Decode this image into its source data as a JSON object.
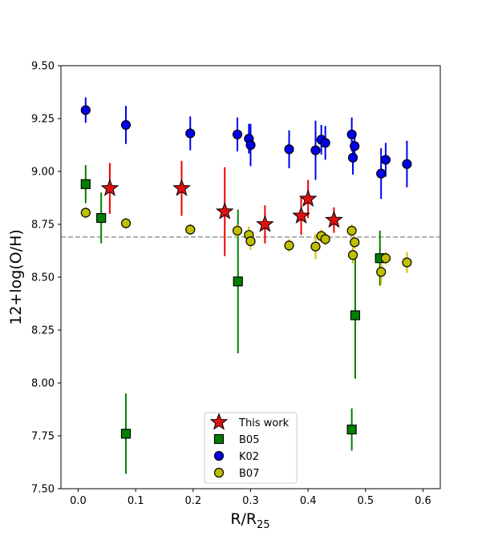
{
  "chart_data": {
    "type": "scatter",
    "title": "",
    "xlabel": "R/R",
    "xlabel_sub": "25",
    "ylabel": "12+log(O/H)",
    "xlim": [
      -0.03,
      0.63
    ],
    "ylim": [
      7.5,
      9.5
    ],
    "xticks": [
      0.0,
      0.1,
      0.2,
      0.3,
      0.4,
      0.5,
      0.6
    ],
    "xtick_labels": [
      "0.0",
      "0.1",
      "0.2",
      "0.3",
      "0.4",
      "0.5",
      "0.6"
    ],
    "yticks": [
      7.5,
      7.75,
      8.0,
      8.25,
      8.5,
      8.75,
      9.0,
      9.25,
      9.5
    ],
    "ytick_labels": [
      "7.50",
      "7.75",
      "8.00",
      "8.25",
      "8.50",
      "8.75",
      "9.00",
      "9.25",
      "9.50"
    ],
    "reference_line": {
      "y": 8.69,
      "style": "dashed",
      "color": "#808080"
    },
    "legend_position": "lower-center",
    "series": [
      {
        "name": "This work",
        "marker": "star",
        "color": "#dd1111",
        "errcolor": "#ee0000",
        "points": [
          {
            "x": 0.055,
            "y": 8.92,
            "err": 0.12
          },
          {
            "x": 0.18,
            "y": 8.92,
            "err": 0.13
          },
          {
            "x": 0.255,
            "y": 8.81,
            "err": 0.21
          },
          {
            "x": 0.325,
            "y": 8.75,
            "err": 0.09
          },
          {
            "x": 0.388,
            "y": 8.79,
            "err": 0.09
          },
          {
            "x": 0.4,
            "y": 8.87,
            "err": 0.09
          },
          {
            "x": 0.445,
            "y": 8.77,
            "err": 0.06
          }
        ]
      },
      {
        "name": "B05",
        "marker": "square",
        "color": "#008000",
        "errcolor": "#008000",
        "points": [
          {
            "x": 0.013,
            "y": 8.94,
            "err": 0.09
          },
          {
            "x": 0.04,
            "y": 8.78,
            "err": 0.12
          },
          {
            "x": 0.083,
            "y": 7.76,
            "err": 0.19
          },
          {
            "x": 0.278,
            "y": 8.48,
            "err": 0.34
          },
          {
            "x": 0.476,
            "y": 7.78,
            "err": 0.1
          },
          {
            "x": 0.482,
            "y": 8.32,
            "err": 0.3
          },
          {
            "x": 0.525,
            "y": 8.59,
            "err": 0.13
          }
        ]
      },
      {
        "name": "K02",
        "marker": "circle",
        "color": "#0000ee",
        "errcolor": "#0000ee",
        "points": [
          {
            "x": 0.013,
            "y": 9.29,
            "err": 0.06
          },
          {
            "x": 0.083,
            "y": 9.22,
            "err": 0.09
          },
          {
            "x": 0.195,
            "y": 9.18,
            "err": 0.08
          },
          {
            "x": 0.277,
            "y": 9.175,
            "err": 0.08
          },
          {
            "x": 0.297,
            "y": 9.155,
            "err": 0.07
          },
          {
            "x": 0.3,
            "y": 9.125,
            "err": 0.1
          },
          {
            "x": 0.367,
            "y": 9.105,
            "err": 0.09
          },
          {
            "x": 0.413,
            "y": 9.1,
            "err": 0.14
          },
          {
            "x": 0.423,
            "y": 9.15,
            "err": 0.07
          },
          {
            "x": 0.43,
            "y": 9.135,
            "err": 0.08
          },
          {
            "x": 0.476,
            "y": 9.175,
            "err": 0.08
          },
          {
            "x": 0.478,
            "y": 9.065,
            "err": 0.08
          },
          {
            "x": 0.481,
            "y": 9.12,
            "err": 0.06
          },
          {
            "x": 0.527,
            "y": 8.99,
            "err": 0.12
          },
          {
            "x": 0.535,
            "y": 9.055,
            "err": 0.08
          },
          {
            "x": 0.572,
            "y": 9.035,
            "err": 0.11
          }
        ]
      },
      {
        "name": "B07",
        "marker": "circle",
        "color": "#bfbf00",
        "errcolor": "#d4c000",
        "points": [
          {
            "x": 0.013,
            "y": 8.805,
            "err": 0.025
          },
          {
            "x": 0.083,
            "y": 8.755,
            "err": 0.025
          },
          {
            "x": 0.195,
            "y": 8.725,
            "err": 0.025
          },
          {
            "x": 0.277,
            "y": 8.72,
            "err": 0.03
          },
          {
            "x": 0.297,
            "y": 8.7,
            "err": 0.04
          },
          {
            "x": 0.3,
            "y": 8.67,
            "err": 0.04
          },
          {
            "x": 0.367,
            "y": 8.65,
            "err": 0.03
          },
          {
            "x": 0.413,
            "y": 8.645,
            "err": 0.06
          },
          {
            "x": 0.423,
            "y": 8.695,
            "err": 0.03
          },
          {
            "x": 0.43,
            "y": 8.68,
            "err": 0.03
          },
          {
            "x": 0.476,
            "y": 8.72,
            "err": 0.03
          },
          {
            "x": 0.478,
            "y": 8.605,
            "err": 0.04
          },
          {
            "x": 0.481,
            "y": 8.665,
            "err": 0.03
          },
          {
            "x": 0.527,
            "y": 8.525,
            "err": 0.06
          },
          {
            "x": 0.535,
            "y": 8.59,
            "err": 0.03
          },
          {
            "x": 0.572,
            "y": 8.57,
            "err": 0.05
          }
        ]
      }
    ]
  }
}
